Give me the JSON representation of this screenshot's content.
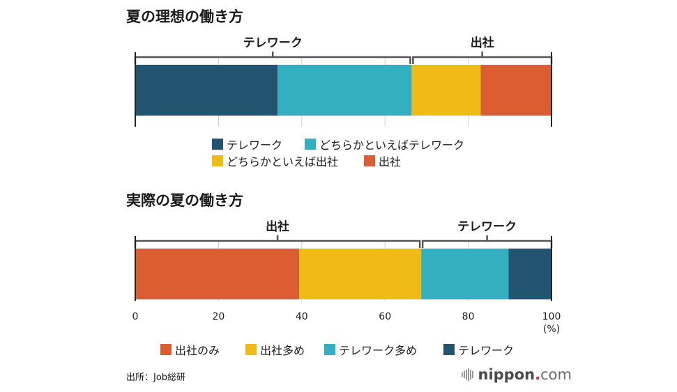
{
  "colors": {
    "telework": "#22546f",
    "leaning_telework": "#33b0bf",
    "leaning_office": "#f1bb17",
    "office": "#db5e33",
    "bracket": "#555555",
    "axis": "#222222",
    "grid": "#d0d0d0"
  },
  "chart_data": [
    {
      "type": "bar",
      "orientation": "horizontal-stacked",
      "title": "夏の理想の働き方",
      "xlim": [
        0,
        100
      ],
      "unit": "%",
      "grid": true,
      "series": [
        {
          "name": "テレワーク",
          "value": 34.2,
          "color_key": "telework"
        },
        {
          "name": "どちらかといえばテレワーク",
          "value": 32.2,
          "color_key": "leaning_telework"
        },
        {
          "name": "どちらかといえば出社",
          "value": 16.6,
          "color_key": "leaning_office"
        },
        {
          "name": "出社",
          "value": 17.0,
          "color_key": "office"
        }
      ],
      "groups": [
        {
          "label": "テレワーク",
          "from": 0,
          "to": 66.4
        },
        {
          "label": "出社",
          "from": 66.4,
          "to": 100
        }
      ],
      "legend": [
        {
          "label": "テレワーク",
          "color_key": "telework"
        },
        {
          "label": "どちらかといえばテレワーク",
          "color_key": "leaning_telework"
        },
        {
          "label": "どちらかといえば出社",
          "color_key": "leaning_office"
        },
        {
          "label": "出社",
          "color_key": "office"
        }
      ],
      "legend_position": "bottom"
    },
    {
      "type": "bar",
      "orientation": "horizontal-stacked",
      "title": "実際の夏の働き方",
      "xlim": [
        0,
        100
      ],
      "unit": "%",
      "grid": true,
      "xticks": [
        0,
        20,
        40,
        60,
        80,
        100
      ],
      "xtick_labels": [
        "0",
        "20",
        "40",
        "60",
        "80",
        "100"
      ],
      "xlabel": "(%)",
      "series": [
        {
          "name": "出社のみ",
          "value": 39.4,
          "color_key": "office"
        },
        {
          "name": "出社多め",
          "value": 29.3,
          "color_key": "leaning_office"
        },
        {
          "name": "テレワーク多め",
          "value": 21.0,
          "color_key": "leaning_telework"
        },
        {
          "name": "テレワーク",
          "value": 10.3,
          "color_key": "telework"
        }
      ],
      "groups": [
        {
          "label": "出社",
          "from": 0,
          "to": 68.7
        },
        {
          "label": "テレワーク",
          "from": 68.7,
          "to": 100
        }
      ],
      "legend": [
        {
          "label": "出社のみ",
          "color_key": "office"
        },
        {
          "label": "出社多め",
          "color_key": "leaning_office"
        },
        {
          "label": "テレワーク多め",
          "color_key": "leaning_telework"
        },
        {
          "label": "テレワーク",
          "color_key": "telework"
        }
      ],
      "legend_position": "bottom"
    }
  ],
  "footer": {
    "source": "出所：Job総研",
    "logo_name": "nippon",
    "logo_dot": ".",
    "logo_com": "com"
  }
}
